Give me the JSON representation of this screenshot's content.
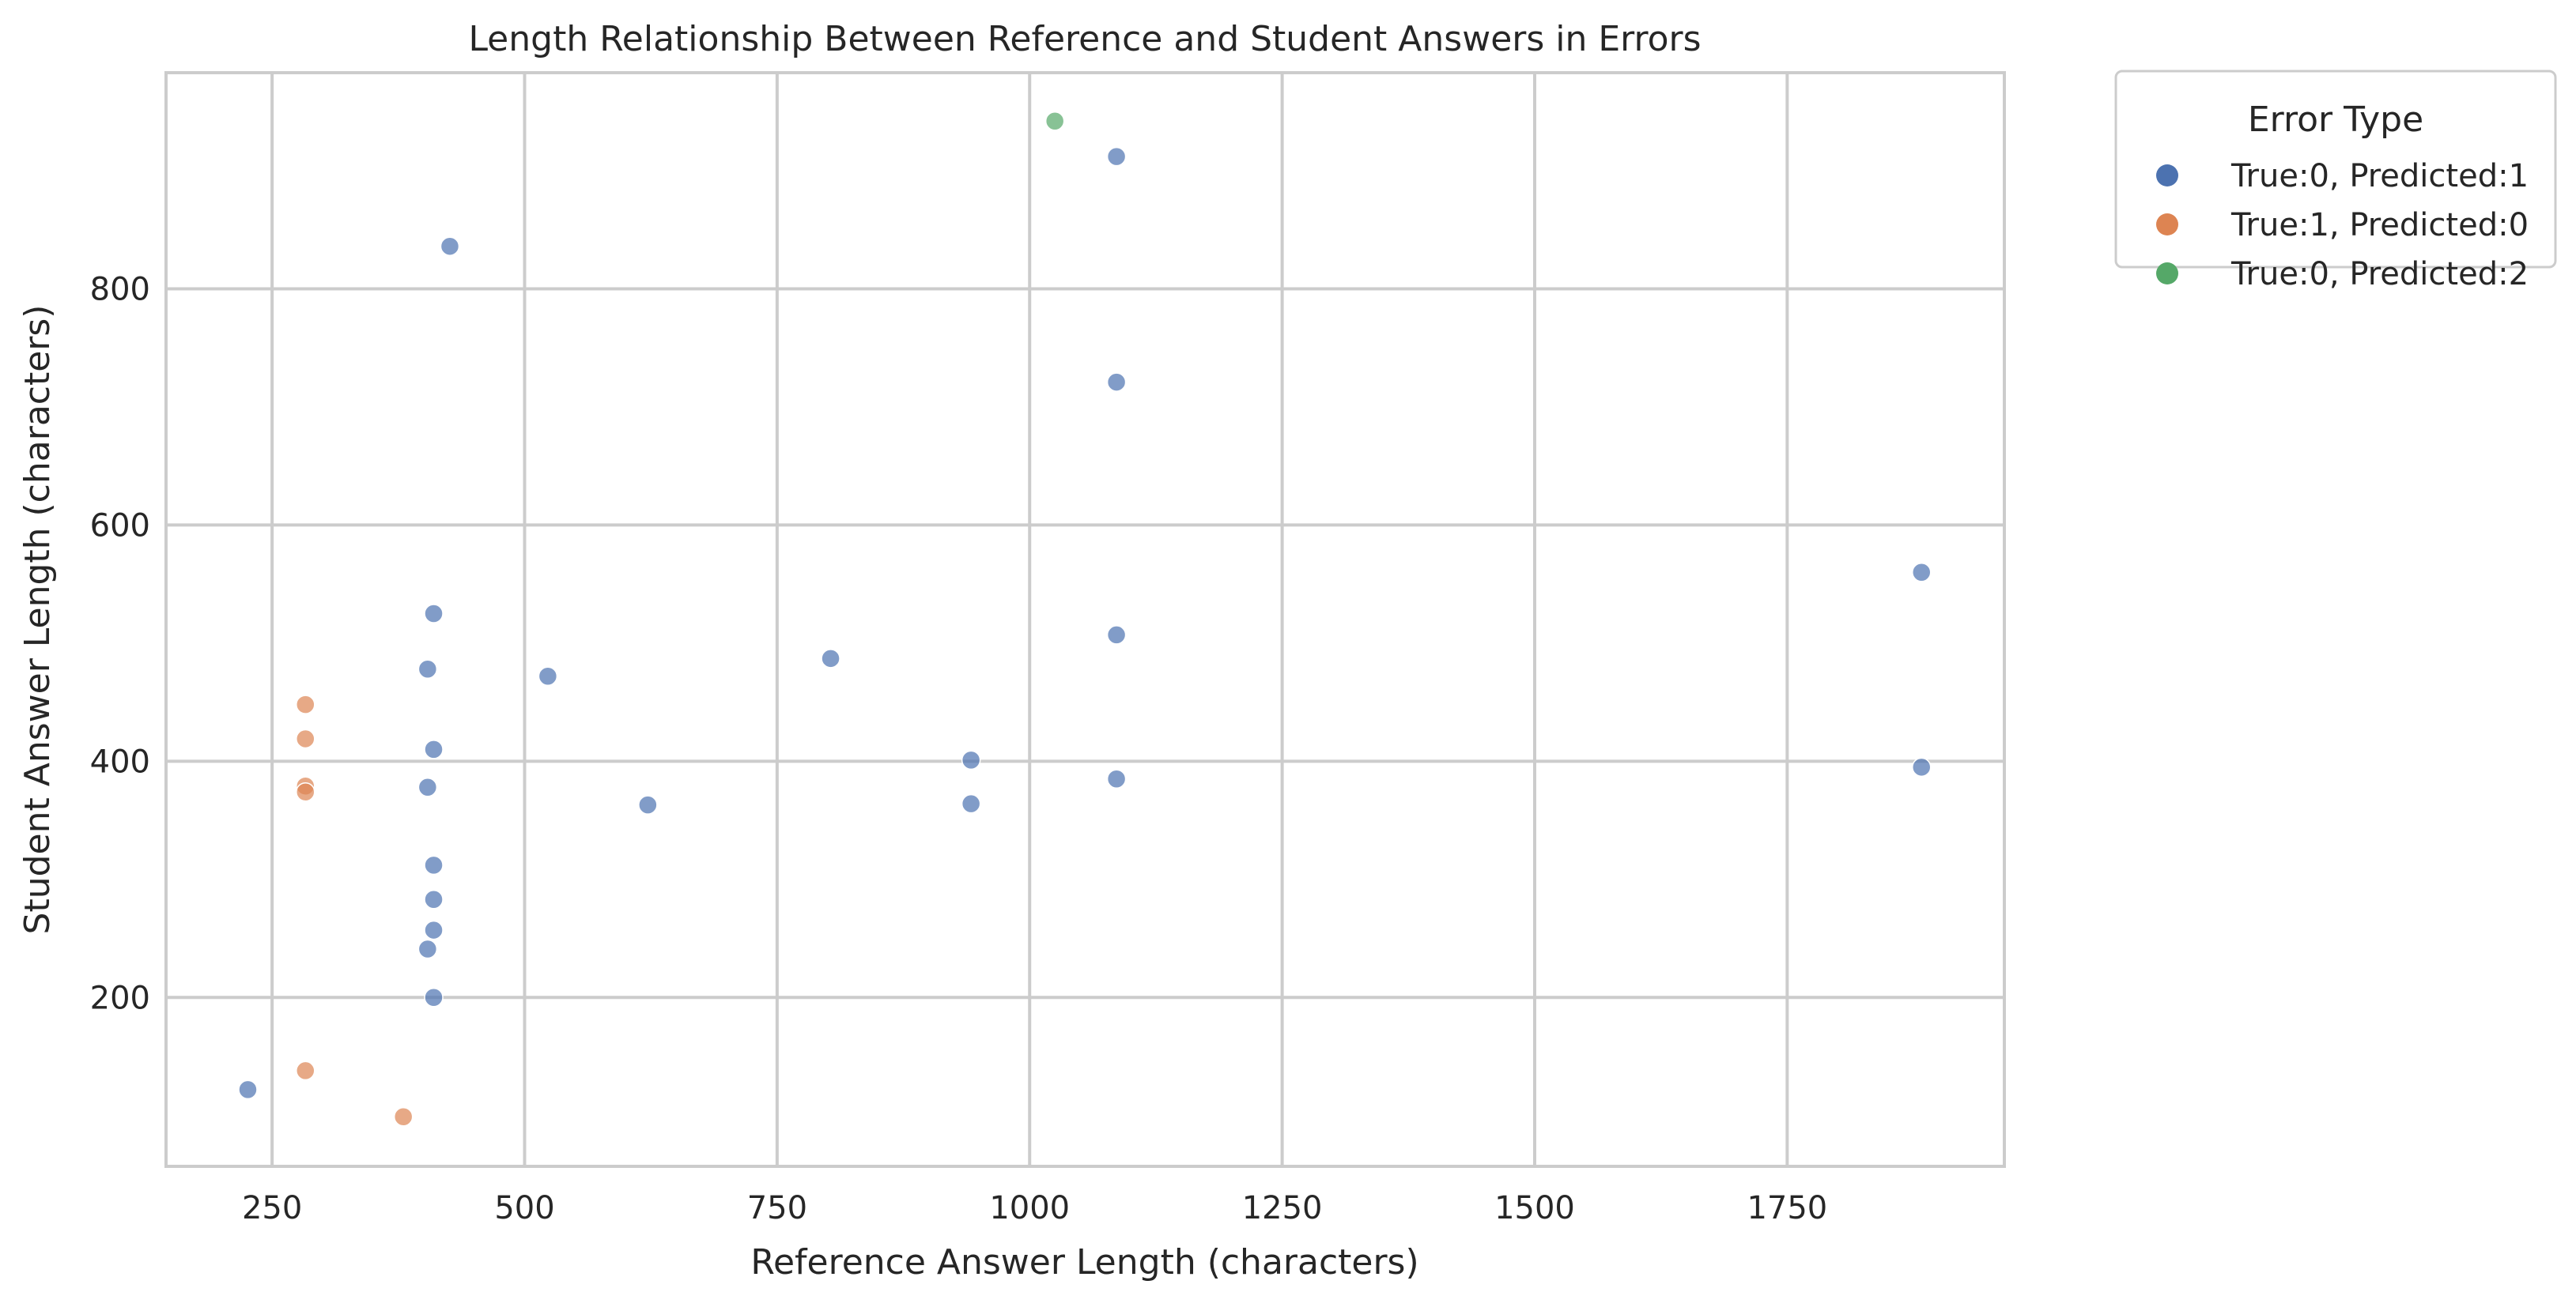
{
  "chart_data": {
    "type": "scatter",
    "title": "Length Relationship Between Reference and Student Answers in Errors",
    "xlabel": "Reference Answer Length (characters)",
    "ylabel": "Student Answer Length (characters)",
    "xlim": [
      145,
      1965
    ],
    "ylim": [
      57,
      983
    ],
    "xticks": [
      250,
      500,
      750,
      1000,
      1250,
      1500,
      1750
    ],
    "yticks": [
      200,
      400,
      600,
      800
    ],
    "grid": true,
    "legend": {
      "title": "Error Type",
      "placement": "outside-top-right",
      "entries": [
        "True:0, Predicted:1",
        "True:1, Predicted:0",
        "True:0, Predicted:2"
      ]
    },
    "series": [
      {
        "name": "True:0, Predicted:1",
        "color": "#4c72b0",
        "points": [
          {
            "x": 1086,
            "y": 912
          },
          {
            "x": 426,
            "y": 836
          },
          {
            "x": 1086,
            "y": 721
          },
          {
            "x": 1883,
            "y": 560
          },
          {
            "x": 410,
            "y": 525
          },
          {
            "x": 1086,
            "y": 507
          },
          {
            "x": 803,
            "y": 487
          },
          {
            "x": 404,
            "y": 478
          },
          {
            "x": 523,
            "y": 472
          },
          {
            "x": 410,
            "y": 410
          },
          {
            "x": 942,
            "y": 401
          },
          {
            "x": 1883,
            "y": 395
          },
          {
            "x": 1086,
            "y": 385
          },
          {
            "x": 404,
            "y": 378
          },
          {
            "x": 622,
            "y": 363
          },
          {
            "x": 942,
            "y": 364
          },
          {
            "x": 410,
            "y": 312
          },
          {
            "x": 410,
            "y": 283
          },
          {
            "x": 410,
            "y": 257
          },
          {
            "x": 404,
            "y": 241
          },
          {
            "x": 410,
            "y": 200
          },
          {
            "x": 226,
            "y": 122
          }
        ]
      },
      {
        "name": "True:1, Predicted:0",
        "color": "#dd8452",
        "points": [
          {
            "x": 283,
            "y": 448
          },
          {
            "x": 283,
            "y": 419
          },
          {
            "x": 283,
            "y": 379
          },
          {
            "x": 283,
            "y": 374
          },
          {
            "x": 283,
            "y": 138
          },
          {
            "x": 380,
            "y": 99
          }
        ]
      },
      {
        "name": "True:0, Predicted:2",
        "color": "#55a868",
        "points": [
          {
            "x": 1025,
            "y": 942
          }
        ]
      }
    ]
  }
}
